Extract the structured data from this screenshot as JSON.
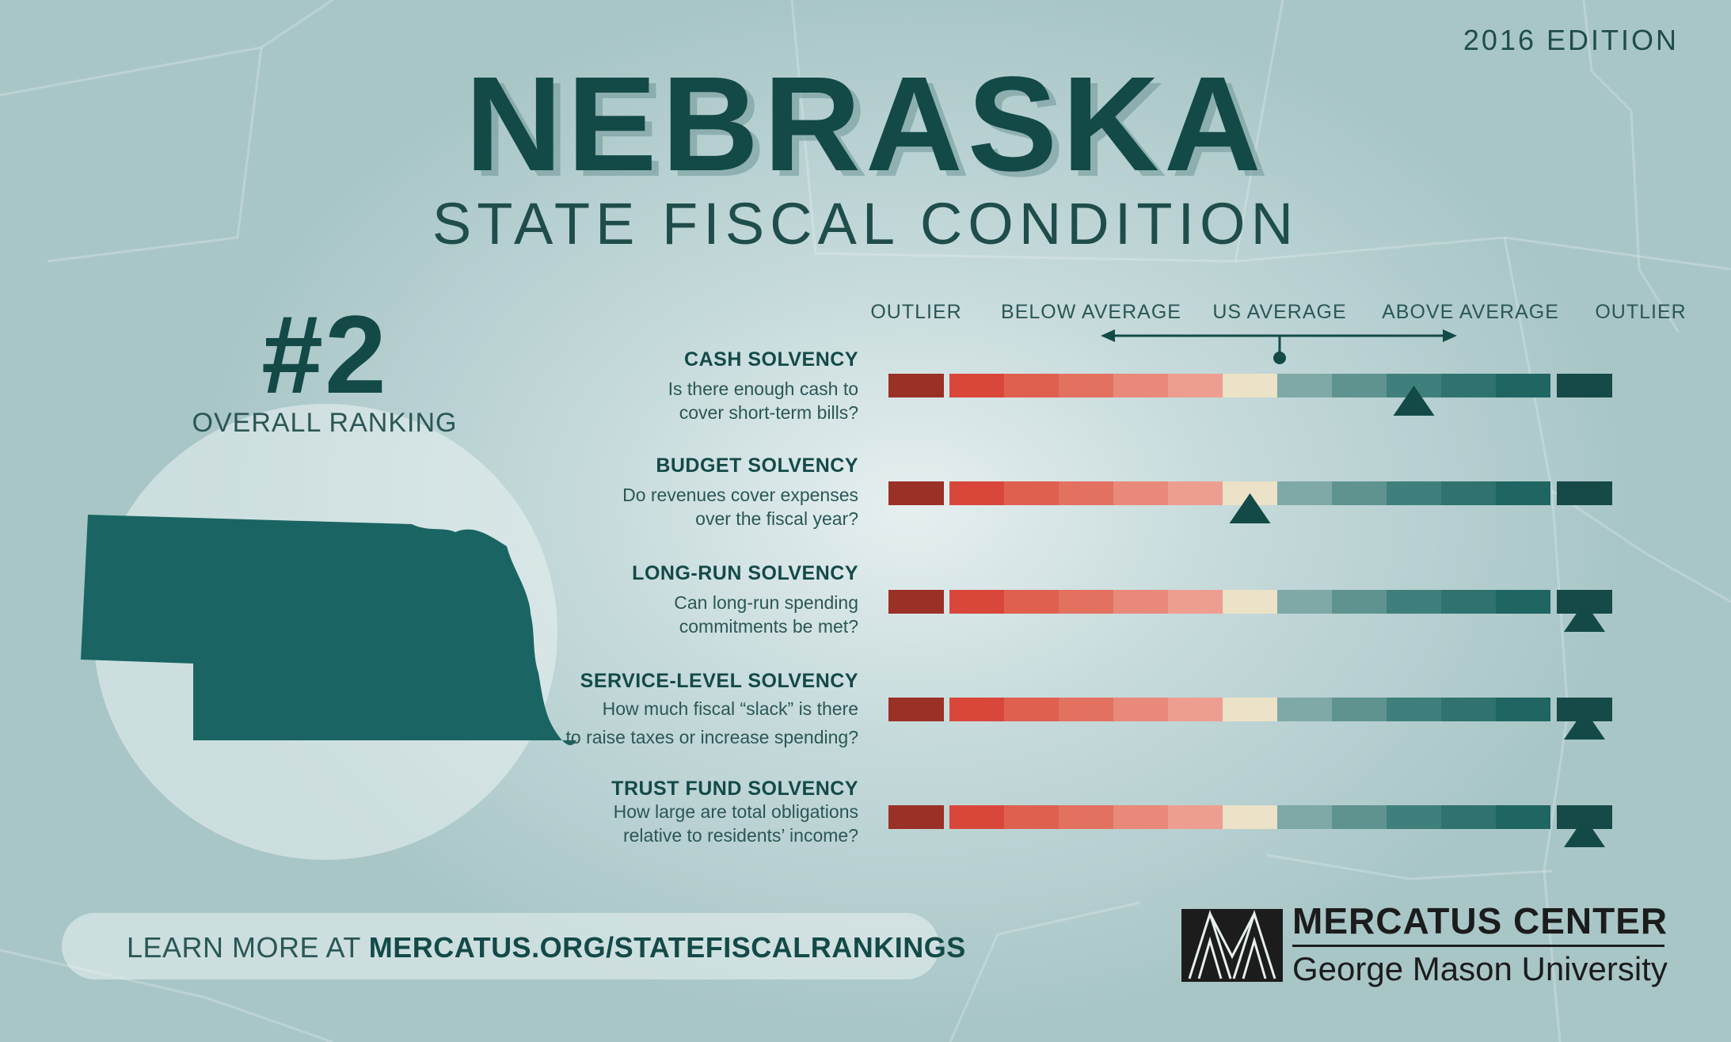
{
  "header": {
    "edition": "2016 EDITION",
    "state": "NEBRASKA",
    "subtitle": "STATE FISCAL CONDITION"
  },
  "ranking": {
    "value": "#2",
    "label": "OVERALL RANKING"
  },
  "scale": {
    "labels": [
      "OUTLIER",
      "BELOW AVERAGE",
      "US AVERAGE",
      "ABOVE AVERAGE",
      "OUTLIER"
    ],
    "segment_colors": [
      "#9b3026",
      "#d9473a",
      "#e0604f",
      "#e3715f",
      "#e9897a",
      "#ee9e90",
      "#ebe2c8",
      "#7ea9a6",
      "#5e9390",
      "#3f807c",
      "#2f726e",
      "#1f6562",
      "#154a48"
    ],
    "marker_color": "#134a48"
  },
  "metrics": [
    {
      "title": "CASH SOLVENCY",
      "question": [
        "Is there enough cash to",
        "cover short-term bills?"
      ],
      "segment_index": 9
    },
    {
      "title": "BUDGET SOLVENCY",
      "question": [
        "Do revenues cover expenses",
        "over the fiscal year?"
      ],
      "segment_index": 6
    },
    {
      "title": "LONG-RUN SOLVENCY",
      "question": [
        "Can long-run spending",
        "commitments be met?"
      ],
      "segment_index": 12
    },
    {
      "title": "SERVICE-LEVEL SOLVENCY",
      "question": [
        "How much fiscal “slack” is there",
        "to raise taxes or increase spending?"
      ],
      "segment_index": 12
    },
    {
      "title": "TRUST FUND SOLVENCY",
      "question": [
        "How large are total obligations",
        "relative to residents’ income?"
      ],
      "segment_index": 12
    }
  ],
  "footer": {
    "prefix": "LEARN MORE AT ",
    "url": "MERCATUS.ORG/STATEFISCALRANKINGS"
  },
  "logo": {
    "name": "MERCATUS CENTER",
    "sub": "George Mason University"
  }
}
